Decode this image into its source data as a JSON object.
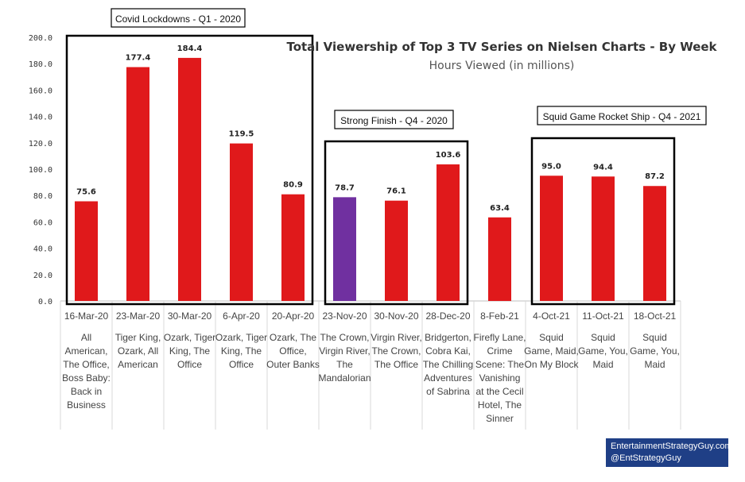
{
  "chart_data": {
    "type": "bar",
    "title": "Total Viewership of Top 3 TV Series on Nielsen Charts - By Week",
    "subtitle": "Hours Viewed (in millions)",
    "ylim": [
      0,
      200
    ],
    "yticks": [
      "0.0",
      "20.0",
      "40.0",
      "60.0",
      "80.0",
      "100.0",
      "120.0",
      "140.0",
      "160.0",
      "180.0",
      "200.0"
    ],
    "categories": [
      {
        "date": "16-Mar-20",
        "shows": [
          "All",
          "American,",
          "The Office,",
          "Boss Baby:",
          "Back in",
          "Business"
        ]
      },
      {
        "date": "23-Mar-20",
        "shows": [
          "Tiger King,",
          "Ozark, All",
          "American"
        ]
      },
      {
        "date": "30-Mar-20",
        "shows": [
          "Ozark, Tiger",
          "King, The",
          "Office"
        ]
      },
      {
        "date": "6-Apr-20",
        "shows": [
          "Ozark, Tiger",
          "King, The",
          "Office"
        ]
      },
      {
        "date": "20-Apr-20",
        "shows": [
          "Ozark, The",
          "Office,",
          "Outer Banks"
        ]
      },
      {
        "date": "23-Nov-20",
        "shows": [
          "The Crown,",
          "Virgin River,",
          "The",
          "Mandalorian"
        ]
      },
      {
        "date": "30-Nov-20",
        "shows": [
          "Virgin River,",
          "The Crown,",
          "The Office"
        ]
      },
      {
        "date": "28-Dec-20",
        "shows": [
          "Bridgerton,",
          "Cobra Kai,",
          "The Chilling",
          "Adventures",
          "of Sabrina"
        ]
      },
      {
        "date": "8-Feb-21",
        "shows": [
          "Firefly Lane,",
          "Crime",
          "Scene: The",
          "Vanishing",
          "at the Cecil",
          "Hotel, The",
          "Sinner"
        ]
      },
      {
        "date": "4-Oct-21",
        "shows": [
          "Squid",
          "Game, Maid,",
          "On My Block"
        ]
      },
      {
        "date": "11-Oct-21",
        "shows": [
          "Squid",
          "Game, You,",
          "Maid"
        ]
      },
      {
        "date": "18-Oct-21",
        "shows": [
          "Squid",
          "Game, You,",
          "Maid"
        ]
      }
    ],
    "values": [
      75.6,
      177.4,
      184.4,
      119.5,
      80.9,
      78.7,
      76.1,
      103.6,
      63.4,
      95.0,
      94.4,
      87.2
    ],
    "value_labels": [
      "75.6",
      "177.4",
      "184.4",
      "119.5",
      "80.9",
      "78.7",
      "76.1",
      "103.6",
      "63.4",
      "95.0",
      "94.4",
      "87.2"
    ],
    "colors": [
      "#e0191b",
      "#e0191b",
      "#e0191b",
      "#e0191b",
      "#e0191b",
      "#7030a0",
      "#e0191b",
      "#e0191b",
      "#e0191b",
      "#e0191b",
      "#e0191b",
      "#e0191b"
    ],
    "annotations": [
      {
        "label": "Covid Lockdowns - Q1 - 2020",
        "from": 0,
        "to": 4
      },
      {
        "label": "Strong Finish - Q4 - 2020",
        "from": 5,
        "to": 7
      },
      {
        "label": "Squid Game Rocket Ship - Q4 - 2021",
        "from": 9,
        "to": 11
      }
    ],
    "grid": false,
    "legend": "none"
  },
  "credit": {
    "line1": "EntertainmentStrategyGuy.com",
    "line2": "@EntStrategyGuy"
  }
}
